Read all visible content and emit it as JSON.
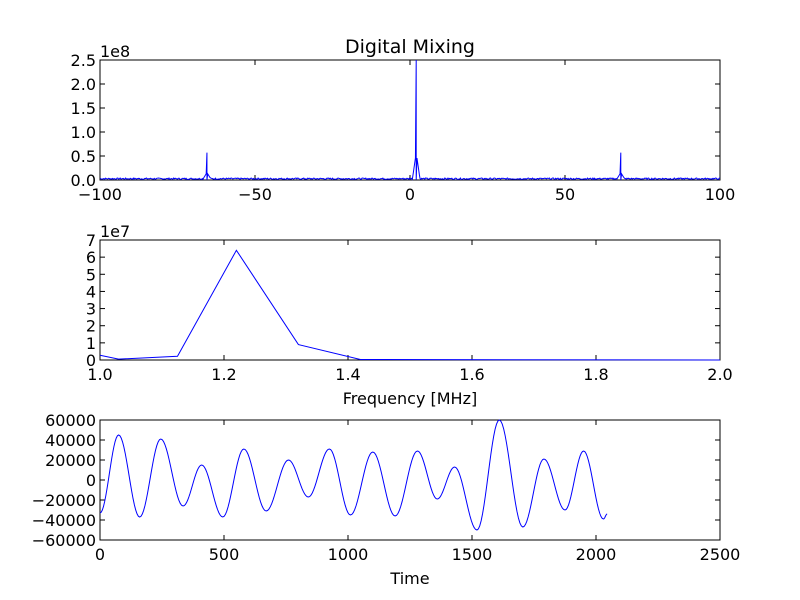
{
  "figure": {
    "title": "Digital Mixing"
  },
  "chart_data": [
    {
      "type": "line",
      "title": "Digital Mixing",
      "xlabel": "",
      "ylabel": "",
      "y_offset_label": "1e8",
      "xlim": [
        -100,
        100
      ],
      "ylim": [
        0,
        2.5
      ],
      "xticks": [
        -100,
        -50,
        0,
        50,
        100
      ],
      "xtick_labels": [
        "−100",
        "−50",
        "0",
        "50",
        "100"
      ],
      "yticks": [
        0,
        0.5,
        1.0,
        1.5,
        2.0,
        2.5
      ],
      "ytick_labels": [
        "0.0",
        "0.5",
        "1.0",
        "1.5",
        "2.0",
        "2.5"
      ],
      "grid": false,
      "color": "#0000ff",
      "noise_floor": 0.03,
      "peaks": [
        {
          "x": -65.5,
          "y": 0.57
        },
        {
          "x": 2.0,
          "y": 2.5
        },
        {
          "x": 68.0,
          "y": 0.57
        }
      ]
    },
    {
      "type": "line",
      "title": "",
      "xlabel": "Frequency [MHz]",
      "ylabel": "",
      "y_offset_label": "1e7",
      "xlim": [
        1.0,
        2.0
      ],
      "ylim": [
        0,
        7
      ],
      "xticks": [
        1.0,
        1.2,
        1.4,
        1.6,
        1.8,
        2.0
      ],
      "xtick_labels": [
        "1.0",
        "1.2",
        "1.4",
        "1.6",
        "1.8",
        "2.0"
      ],
      "yticks": [
        0,
        1,
        2,
        3,
        4,
        5,
        6,
        7
      ],
      "ytick_labels": [
        "0",
        "1",
        "2",
        "3",
        "4",
        "5",
        "6",
        "7"
      ],
      "grid": false,
      "color": "#0000ff",
      "x": [
        1.0,
        1.03,
        1.125,
        1.22,
        1.32,
        1.42,
        2.0
      ],
      "y": [
        0.28,
        0.05,
        0.22,
        6.4,
        0.9,
        0.03,
        0.0
      ]
    },
    {
      "type": "line",
      "title": "",
      "xlabel": "Time",
      "ylabel": "",
      "y_offset_label": "",
      "xlim": [
        0,
        2500
      ],
      "ylim": [
        -60000,
        60000
      ],
      "xticks": [
        0,
        500,
        1000,
        1500,
        2000,
        2500
      ],
      "xtick_labels": [
        "0",
        "500",
        "1000",
        "1500",
        "2000",
        "2500"
      ],
      "yticks": [
        -60000,
        -40000,
        -20000,
        0,
        20000,
        40000,
        60000
      ],
      "ytick_labels": [
        "−60000",
        "−40000",
        "−20000",
        "0",
        "20000",
        "40000",
        "60000"
      ],
      "grid": false,
      "color": "#0000ff",
      "extrema": [
        [
          0,
          -33000
        ],
        [
          75,
          45000
        ],
        [
          160,
          -37000
        ],
        [
          245,
          41000
        ],
        [
          335,
          -26000
        ],
        [
          410,
          15000
        ],
        [
          495,
          -37000
        ],
        [
          580,
          31000
        ],
        [
          670,
          -31000
        ],
        [
          760,
          20000
        ],
        [
          840,
          -17000
        ],
        [
          925,
          31000
        ],
        [
          1010,
          -35000
        ],
        [
          1100,
          28000
        ],
        [
          1190,
          -36000
        ],
        [
          1280,
          29000
        ],
        [
          1360,
          -19000
        ],
        [
          1430,
          13000
        ],
        [
          1520,
          -50000
        ],
        [
          1610,
          60000
        ],
        [
          1705,
          -47000
        ],
        [
          1790,
          21000
        ],
        [
          1875,
          -30000
        ],
        [
          1950,
          29000
        ],
        [
          2030,
          -39000
        ],
        [
          2045,
          -34000
        ]
      ]
    }
  ]
}
